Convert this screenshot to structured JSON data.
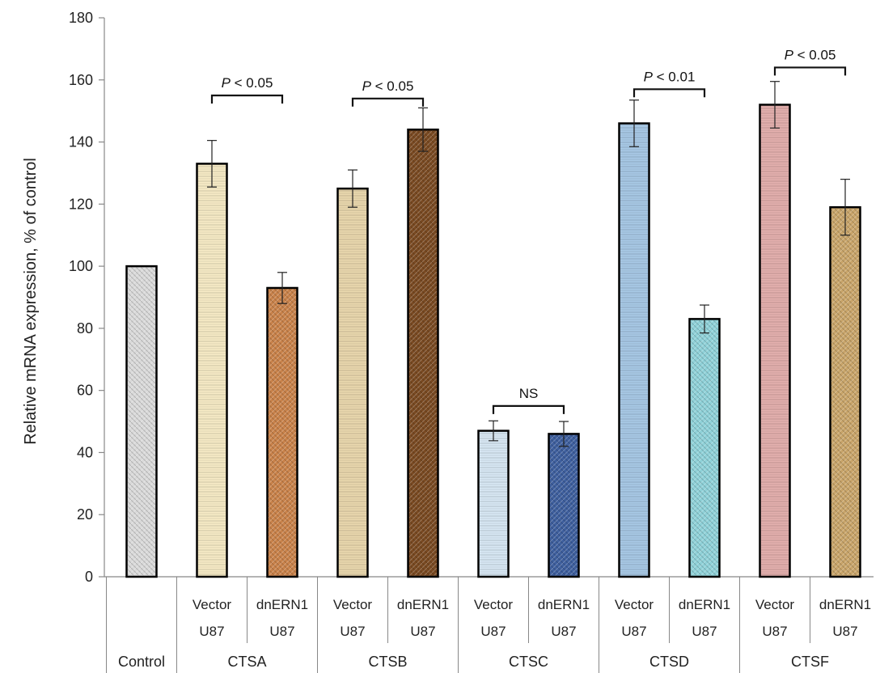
{
  "chart_data": {
    "type": "bar",
    "title": "",
    "xlabel": "",
    "ylabel": "Relative mRNA expression, % of control",
    "ylim": [
      0,
      180
    ],
    "yticks": [
      0,
      20,
      40,
      60,
      80,
      100,
      120,
      140,
      160,
      180
    ],
    "grid": false,
    "legend": "none",
    "bars": [
      {
        "group": "Control",
        "line1": "",
        "line2": "",
        "value": 100,
        "error": 0,
        "color": "#d9d9d9"
      },
      {
        "group": "CTSA",
        "line1": "Vector",
        "line2": "U87",
        "value": 133,
        "error": 7.5,
        "color": "#f7ebc6"
      },
      {
        "group": "CTSA",
        "line1": "dnERN1",
        "line2": "U87",
        "value": 93,
        "error": 5,
        "color": "#c9824a"
      },
      {
        "group": "CTSB",
        "line1": "Vector",
        "line2": "U87",
        "value": 125,
        "error": 6,
        "color": "#ead8ae"
      },
      {
        "group": "CTSB",
        "line1": "dnERN1",
        "line2": "U87",
        "value": 144,
        "error": 7,
        "color": "#7a4a22"
      },
      {
        "group": "CTSC",
        "line1": "Vector",
        "line2": "U87",
        "value": 47,
        "error": 3.2,
        "color": "#d8e8f4"
      },
      {
        "group": "CTSC",
        "line1": "dnERN1",
        "line2": "U87",
        "value": 46,
        "error": 4,
        "color": "#3e5f9e"
      },
      {
        "group": "CTSD",
        "line1": "Vector",
        "line2": "U87",
        "value": 146,
        "error": 7.5,
        "color": "#a8c9e6"
      },
      {
        "group": "CTSD",
        "line1": "dnERN1",
        "line2": "U87",
        "value": 83,
        "error": 4.5,
        "color": "#8fd1d8"
      },
      {
        "group": "CTSF",
        "line1": "Vector",
        "line2": "U87",
        "value": 152,
        "error": 7.5,
        "color": "#e4b0ae"
      },
      {
        "group": "CTSF",
        "line1": "dnERN1",
        "line2": "U87",
        "value": 119,
        "error": 9,
        "color": "#c9a56a"
      }
    ],
    "groups": [
      "Control",
      "CTSA",
      "CTSB",
      "CTSC",
      "CTSD",
      "CTSF"
    ],
    "annotations": [
      {
        "from": 1,
        "to": 2,
        "y": 155,
        "prefix": "P",
        "text": " < 0.05"
      },
      {
        "from": 3,
        "to": 4,
        "y": 154,
        "prefix": "P",
        "text": " < 0.05"
      },
      {
        "from": 5,
        "to": 6,
        "y": 55,
        "prefix": "",
        "text": "NS"
      },
      {
        "from": 7,
        "to": 8,
        "y": 157,
        "prefix": "P",
        "text": " < 0.01"
      },
      {
        "from": 9,
        "to": 10,
        "y": 164,
        "prefix": "P",
        "text": " < 0.05"
      }
    ]
  }
}
